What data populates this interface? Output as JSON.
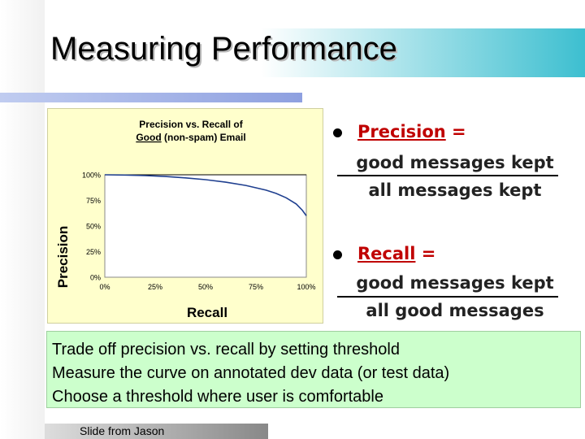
{
  "slide": {
    "title": "Measuring Performance",
    "credit": "Slide from Jason"
  },
  "definitions": [
    {
      "term": "Precision",
      "suffix": " =",
      "numerator": "good messages kept",
      "denominator": "all messages kept"
    },
    {
      "term": "Recall",
      "suffix": " =",
      "numerator": "good messages kept",
      "denominator": "all good messages"
    }
  ],
  "notes": [
    "Trade off precision vs. recall by setting threshold",
    "Measure the curve on annotated dev data (or test data)",
    "Choose a threshold where user is comfortable"
  ],
  "chart_data": {
    "type": "line",
    "title_line1": "Precision vs. Recall of",
    "title_line2_underlined": "Good",
    "title_line2_rest": " (non-spam) Email",
    "xlabel": "Recall",
    "ylabel": "Precision",
    "xlim": [
      0,
      100
    ],
    "ylim": [
      0,
      100
    ],
    "x_ticks": [
      "0%",
      "25%",
      "50%",
      "75%",
      "100%"
    ],
    "y_ticks": [
      "0%",
      "25%",
      "50%",
      "75%",
      "100%"
    ],
    "grid": "horizontal at 100%",
    "series": [
      {
        "color": "#1f3f8f",
        "x": [
          0,
          10,
          20,
          30,
          40,
          50,
          60,
          70,
          80,
          85,
          90,
          95,
          98,
          100
        ],
        "y": [
          100,
          99.8,
          99.2,
          98.3,
          97,
          95.2,
          92.8,
          89.6,
          85,
          81.8,
          77.5,
          71.5,
          65.5,
          60
        ]
      }
    ]
  }
}
